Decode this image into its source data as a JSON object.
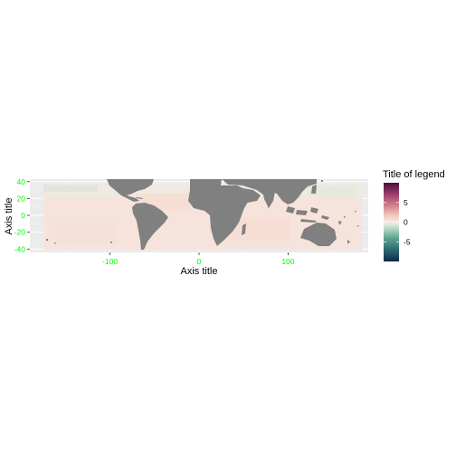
{
  "chart_data": {
    "type": "heatmap",
    "subtype": "geographic raster map (sea-surface anomaly style)",
    "xlabel": "Axis title",
    "ylabel": "Axis title",
    "xlim": [
      -190,
      190
    ],
    "ylim": [
      -44,
      43
    ],
    "x_ticks": [
      {
        "value": -100,
        "label": "-100"
      },
      {
        "value": 0,
        "label": "0"
      },
      {
        "value": 100,
        "label": "100"
      }
    ],
    "y_ticks": [
      {
        "value": 40,
        "label": "40"
      },
      {
        "value": 20,
        "label": "20"
      },
      {
        "value": 0,
        "label": "0"
      },
      {
        "value": -20,
        "label": "-20"
      },
      {
        "value": -40,
        "label": "-40"
      }
    ],
    "tick_label_color": "#00ff00",
    "grid": true,
    "panel_background": "#ebebeb",
    "land_color": "#808080",
    "legend": {
      "title": "Title of legend",
      "position": "right",
      "range": [
        -10,
        10
      ],
      "ticks": [
        {
          "value": 5,
          "label": "5"
        },
        {
          "value": 0,
          "label": "0"
        },
        {
          "value": -5,
          "label": "-5"
        }
      ],
      "colors": [
        "#0e2a45",
        "#2c6b74",
        "#5fa58e",
        "#b9d9c6",
        "#f6ece6",
        "#efc0b4",
        "#d07a86",
        "#9b3a6b",
        "#4a0f3c"
      ]
    },
    "field_note": "ocean cells show small anomalies near 0 (pale pink), slight negative values (pale green) at northern high latitudes"
  }
}
